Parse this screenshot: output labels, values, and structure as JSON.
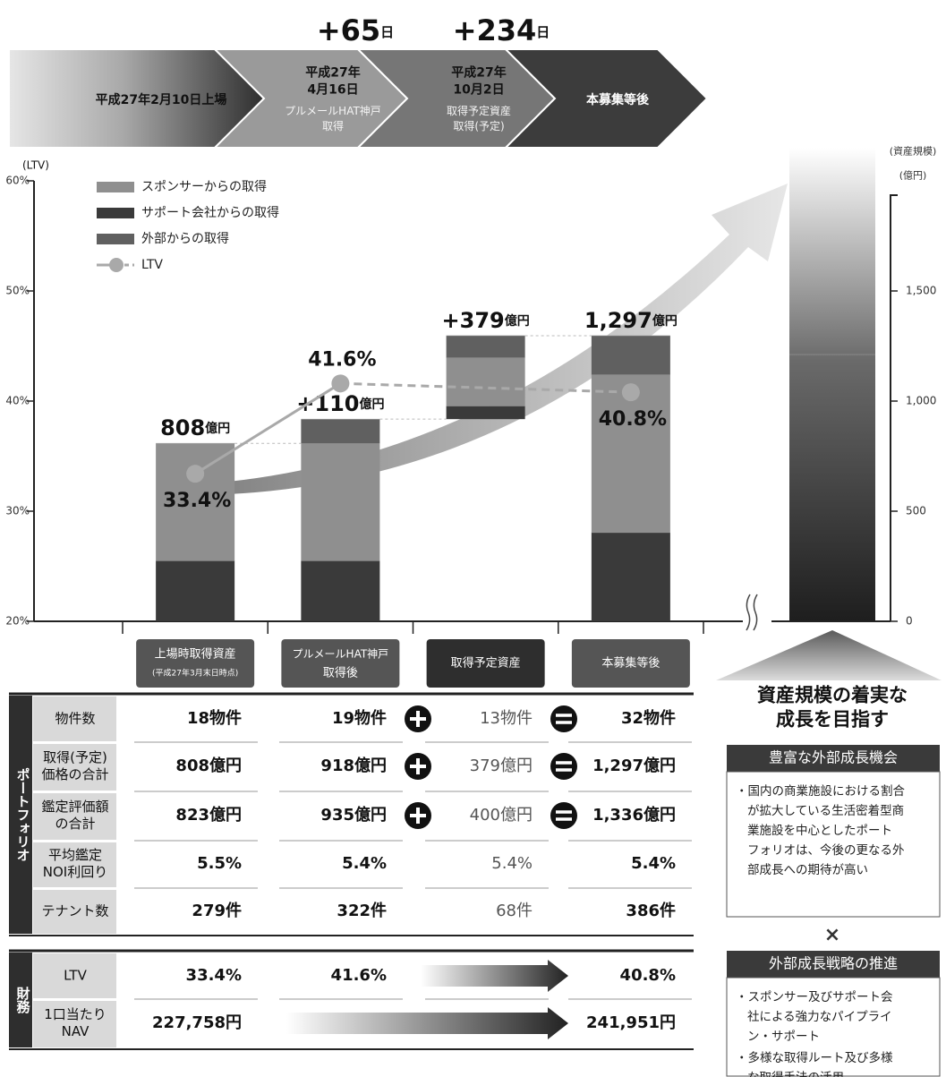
{
  "timeline": {
    "steps": [
      {
        "title": [
          "平成27年2月10日上場"
        ]
      },
      {
        "title": [
          "平成27年",
          "4月16日"
        ],
        "note": [
          "プルメールHAT神戸",
          "取得"
        ]
      },
      {
        "title": [
          "平成27年",
          "10月2日"
        ],
        "note": [
          "取得予定資産",
          "取得(予定)"
        ]
      },
      {
        "title": [
          "本募集等後"
        ]
      }
    ],
    "gaps": [
      {
        "number": "+65",
        "unit": "日"
      },
      {
        "number": "+234",
        "unit": "日"
      }
    ]
  },
  "chart_data": {
    "type": "bar",
    "stacked": true,
    "ylabel": "(LTV)",
    "y2label": [
      "(資産規模)",
      "(億円)"
    ],
    "categories": [
      [
        "上場時取得資産",
        "(平成27年3月末日時点)"
      ],
      [
        "プルメールHAT神戸",
        "取得後"
      ],
      [
        "取得予定資産"
      ],
      [
        "本募集等後"
      ]
    ],
    "floating": [
      false,
      false,
      true,
      false
    ],
    "series": [
      {
        "name": "スポンサーからの取得",
        "color": "#8f8f8f",
        "axis": "y2",
        "values": [
          533,
          533,
          219,
          717
        ]
      },
      {
        "name": "サポート会社からの取得",
        "color": "#3a3a3a",
        "axis": "y2",
        "values": [
          275,
          275,
          60,
          403
        ]
      },
      {
        "name": "外部からの取得",
        "color": "#606060",
        "axis": "y2",
        "values": [
          null,
          110,
          100,
          177
        ]
      },
      {
        "name": "LTV",
        "type": "line",
        "color": "#a9a9a9",
        "values": [
          33.4,
          41.6,
          null,
          40.8
        ],
        "value_labels": [
          "33.4%",
          "41.6%",
          null,
          "40.8%"
        ]
      }
    ],
    "bar_labels": [
      {
        "number": "808",
        "unit": "億円"
      },
      {
        "number": "+110",
        "unit": "億円"
      },
      {
        "number": "+379",
        "unit": "億円"
      },
      {
        "number": "1,297",
        "unit": "億円"
      }
    ],
    "ylim": [
      20,
      60
    ],
    "yticks": [
      {
        "value": 20,
        "label": "20%"
      },
      {
        "value": 30,
        "label": "30%"
      },
      {
        "value": 40,
        "label": "40%"
      },
      {
        "value": 50,
        "label": "50%"
      },
      {
        "value": 60,
        "label": "60%"
      }
    ],
    "y2lim": [
      0,
      2000
    ],
    "y2ticks": [
      0,
      500,
      {
        "value": 1000,
        "label": "1,000"
      },
      {
        "value": 1500,
        "label": "1,500"
      }
    ],
    "legend": "upper left"
  },
  "table": {
    "portfolio_label": "ポートフォリオ",
    "rows": [
      {
        "header": [
          "物件数"
        ],
        "cells": [
          "18物件",
          "19物件",
          "13物件",
          "32物件"
        ]
      },
      {
        "header": [
          "取得(予定)",
          "価格の合計"
        ],
        "cells": [
          "808億円",
          "918億円",
          "379億円",
          "1,297億円"
        ]
      },
      {
        "header": [
          "鑑定評価額",
          "の合計"
        ],
        "cells": [
          "823億円",
          "935億円",
          "400億円",
          "1,336億円"
        ]
      },
      {
        "header": [
          "平均鑑定",
          "NOI利回り"
        ],
        "cells": [
          "5.5%",
          "5.4%",
          "5.4%",
          "5.4%"
        ]
      },
      {
        "header": [
          "テナント数"
        ],
        "cells": [
          "279件",
          "322件",
          "68件",
          "386件"
        ]
      }
    ],
    "finance_label": "財務",
    "finance_rows": [
      {
        "header": [
          "LTV"
        ],
        "cells": [
          "33.4%",
          "41.6%",
          null,
          "40.8%"
        ]
      },
      {
        "header": [
          "1口当たり",
          "NAV"
        ],
        "cells": [
          "227,758円",
          null,
          null,
          "241,951円"
        ]
      }
    ]
  },
  "side_panel": {
    "headline": [
      "資産規模の着実な",
      "成長を目指す"
    ],
    "times": "×",
    "boxes": [
      {
        "title": "豊富な外部成長機会",
        "bullets": [
          [
            "・国内の商業施設における割合",
            "が拡大している生活密着型商",
            "業施設を中心としたポート",
            "フォリオは、今後の更なる外",
            "部成長への期待が高い"
          ]
        ]
      },
      {
        "title": "外部成長戦略の推進",
        "bullets": [
          [
            "・スポンサー及びサポート会",
            "社による強力なパイプライ",
            "ン・サポート"
          ],
          [
            "・多様な取得ルート及び多様",
            "な取得手法の活用"
          ]
        ]
      }
    ]
  }
}
